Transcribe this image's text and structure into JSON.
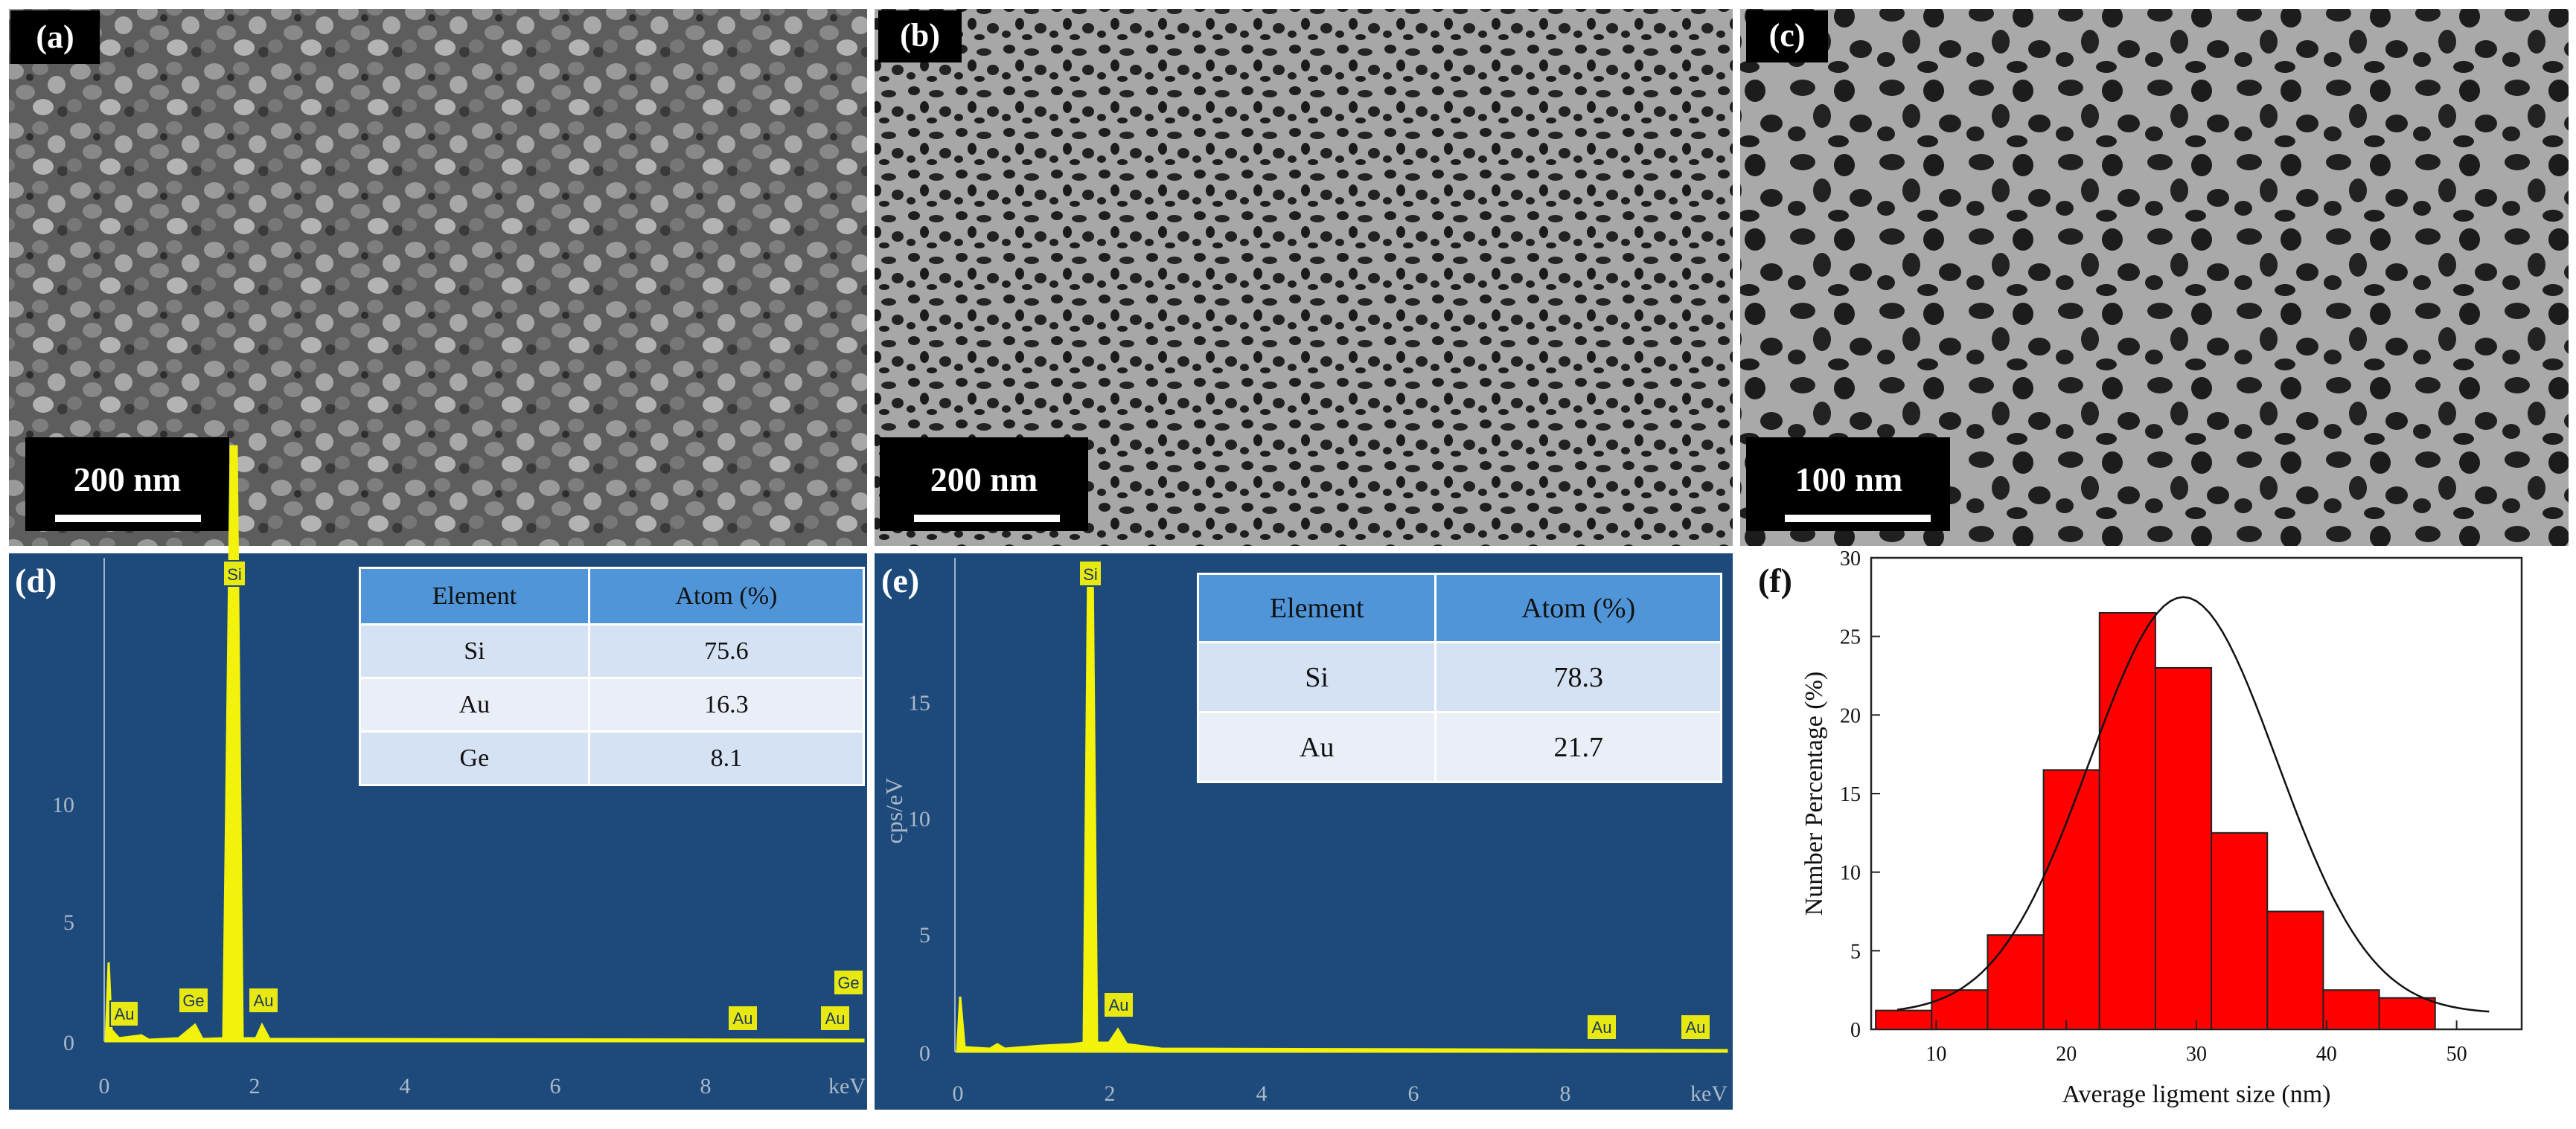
{
  "panels": {
    "a": {
      "label": "(a)",
      "scale": "200 nm"
    },
    "b": {
      "label": "(b)",
      "scale": "200 nm"
    },
    "c": {
      "label": "(c)",
      "scale": "100 nm"
    },
    "d": {
      "label": "(d)"
    },
    "e": {
      "label": "(e)"
    },
    "f": {
      "label": "(f)"
    }
  },
  "eds_d": {
    "yticks": [
      "0",
      "5",
      "10"
    ],
    "xticks": [
      "0",
      "2",
      "4",
      "6",
      "8",
      "keV"
    ],
    "peaks": [
      "Si",
      "Au",
      "Ge",
      "Au",
      "Au",
      "Au",
      "Ge"
    ],
    "table": {
      "headers": [
        "Element",
        "Atom (%)"
      ],
      "rows": [
        [
          "Si",
          "75.6"
        ],
        [
          "Au",
          "16.3"
        ],
        [
          "Ge",
          "8.1"
        ]
      ]
    }
  },
  "eds_e": {
    "ylabel": "cps/eV",
    "yticks": [
      "0",
      "5",
      "10",
      "15"
    ],
    "xticks": [
      "0",
      "2",
      "4",
      "6",
      "8",
      "keV"
    ],
    "peaks": [
      "Si",
      "Au",
      "Au",
      "Au"
    ],
    "table": {
      "headers": [
        "Element",
        "Atom (%)"
      ],
      "rows": [
        [
          "Si",
          "78.3"
        ],
        [
          "Au",
          "21.7"
        ]
      ]
    }
  },
  "colors": {
    "eds_bg": "#1d4a7a",
    "eds_trace": "#f2f20c",
    "bars": "#ff0000"
  },
  "chart_data": {
    "type": "bar",
    "xlabel": "Average ligment size (nm)",
    "ylabel": "Number Percentage (%)",
    "xlim": [
      5,
      55
    ],
    "ylim": [
      0,
      30
    ],
    "xticks": [
      10,
      20,
      30,
      40,
      50
    ],
    "yticks": [
      0,
      5,
      10,
      15,
      20,
      25,
      30
    ],
    "bin_width": 4.3,
    "x": [
      7.5,
      11.8,
      16.1,
      20.4,
      24.7,
      29.0,
      33.3,
      37.6,
      41.9,
      46.2,
      50.5
    ],
    "values": [
      1.2,
      2.5,
      6.0,
      16.5,
      26.5,
      23.0,
      12.5,
      7.5,
      2.5,
      2.0,
      0
    ],
    "fit": "gaussian"
  }
}
